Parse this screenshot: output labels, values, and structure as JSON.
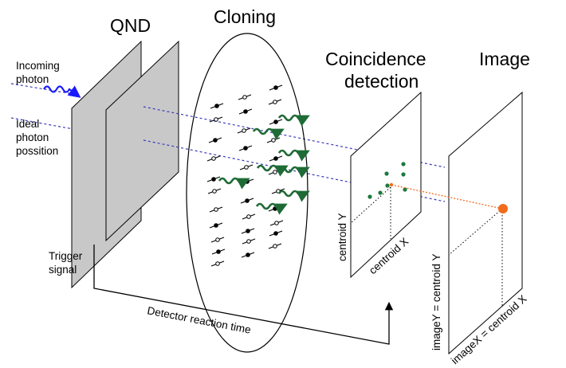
{
  "titles": {
    "qnd": "QND",
    "cloning": "Cloning",
    "coincidence_line1": "Coincidence",
    "coincidence_line2": "detection",
    "image": "Image"
  },
  "labels": {
    "incoming_line1": "Incoming",
    "incoming_line2": "photon",
    "ideal_line1": "Ideal",
    "ideal_line2": "photon",
    "ideal_line3": "possition",
    "trigger_line1": "Trigger",
    "trigger_line2": "signal",
    "reaction_time": "Detector reaction time",
    "centroid_y": "centroid Y",
    "centroid_x": "centroid X",
    "image_y": "imageY  =  centroid Y",
    "image_x": "imageX  =  centroid X"
  },
  "colors": {
    "panel_gray": "#c8c8c8",
    "photon_blue": "#1a1aff",
    "dashed_blue": "#3a3ab8",
    "clone_green": "#1e6b35",
    "dot_green": "#1a7a3c",
    "pixel_orange": "#f26b1d"
  }
}
